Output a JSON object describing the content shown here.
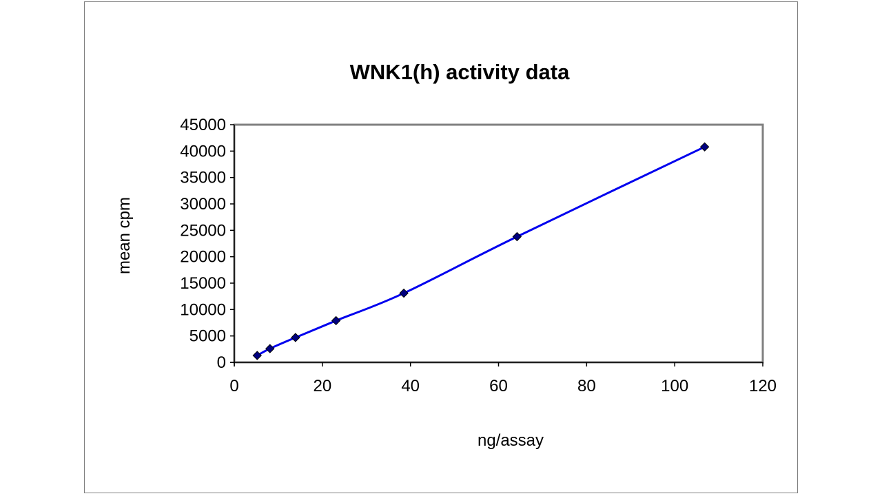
{
  "chart_data": {
    "type": "scatter",
    "title": "WNK1(h) activity data",
    "xlabel": "ng/assay",
    "ylabel": "mean cpm",
    "xlim": [
      0,
      120
    ],
    "ylim": [
      0,
      45000
    ],
    "x_ticks": [
      "0",
      "20",
      "40",
      "60",
      "80",
      "100",
      "120"
    ],
    "y_ticks": [
      "0",
      "5000",
      "10000",
      "15000",
      "20000",
      "25000",
      "30000",
      "35000",
      "40000",
      "45000"
    ],
    "grid": false,
    "legend": "none",
    "series": [
      {
        "x": [
          5.2,
          8.1,
          13.9,
          23.1,
          38.5,
          64.2,
          106.8
        ],
        "y": [
          1300,
          2600,
          4700,
          7900,
          13100,
          23800,
          40800
        ],
        "marker": "diamond",
        "line": "smooth"
      }
    ],
    "colors": {
      "line": "#0000ee",
      "marker_fill": "#000080",
      "plot_border": "#808080",
      "axis": "#000000"
    }
  }
}
